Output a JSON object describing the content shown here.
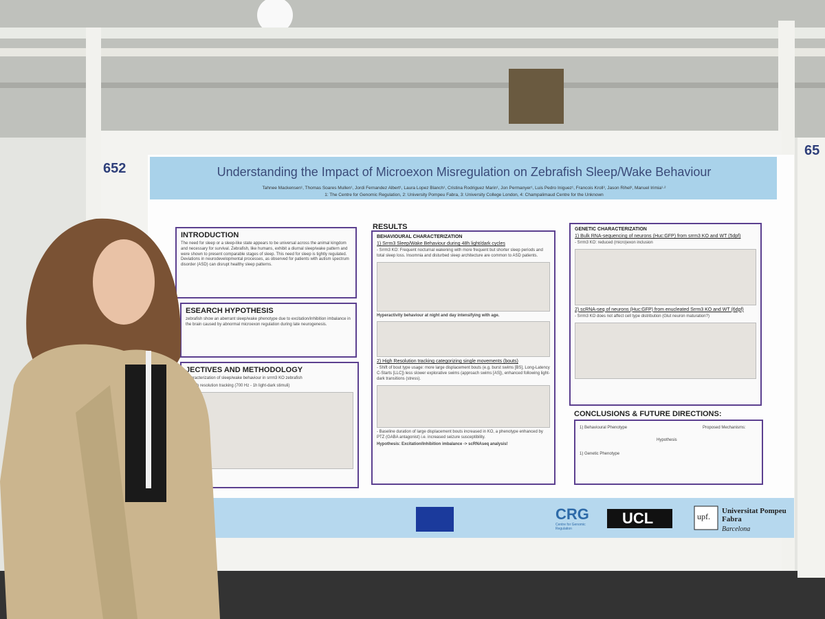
{
  "board_number": "652",
  "next_board_number": "65",
  "poster": {
    "title": "Understanding the Impact of Microexon Misregulation on Zebrafish Sleep/Wake Behaviour",
    "authors": "Tahnee Mackensen¹, Thomas Soares Mullen¹, Jordi Fernandez Albert¹, Laura Lopez Blanch¹, Cristina Rodriguez Marin¹, Jon Permanyer¹, Luis Pedro Iniguez¹, Francois Kroll³, Jason Rihel³, Manuel Irimia¹·²",
    "affiliations": "1: The Centre for Genomic Regulation, 2: University Pompeu Fabra, 3: University College London, 4: Champalimaud Centre for the Unknown",
    "introduction": {
      "heading": "INTRODUCTION",
      "text": "The need for sleep or a sleep-like state appears to be universal across the animal kingdom and necessary for survival. Zebrafish, like humans, exhibit a diurnal sleep/wake pattern and were shown to present comparable stages of sleep. This need for sleep is tightly regulated. Deviations in neurodevelopmental processes, as observed for patients with autism spectrum disorder (ASD) can disrupt healthy sleep patterns."
    },
    "hypothesis": {
      "heading": "ESEARCH HYPOTHESIS",
      "text": "zebrafish show an aberrant sleep/wake phenotype due to excitation/inhibition imbalance in the brain caused by abnormal microexon regulation during late neurogenesis."
    },
    "objectives": {
      "heading": "JECTIVES AND METHODOLOGY",
      "text": "Characterization of sleep/wake behaviour in srrm3 KO zebrafish",
      "item": "b) High resolution tracking (700 Hz - 1h light-dark stimuli)"
    },
    "results": {
      "heading": "RESULTS",
      "subheading": "BEHAVIOURAL CHARACTERIZATION",
      "part1": "1) Srrm3 Sleep/Wake Behaviour during 48h light/dark cycles",
      "part1_text": "- Srrm3 KO: Frequent nocturnal wakening with more frequent but shorter sleep periods and total sleep loss. Insomnia and disturbed sleep architecture are common to ASD patients.",
      "hyperactivity": "Hyperactivity behaviour at night and day intensifying with age.",
      "part2": "2) High Resolution tracking categorizing single movements (bouts)",
      "part2_text": "- Shift of bout type usage: more large displacement bouts (e.g. burst swims [BS], Long-Latency C-Starts [LLC]) less slower explorative swims (approach swims [AS]), enhanced following light-dark transitions (stress).",
      "baseline": "- Baseline duration of large displacement bouts increased in KO, a phenotype enhanced by PTZ (GABA antagonist) i.e. increased seizure susceptibility.",
      "conclusion": "Hypothesis: Excitation/Inhibition imbalance -> scRNAseq analysis!"
    },
    "genetic": {
      "heading": "GENETIC CHARACTERIZATION",
      "part1": "1) Bulk RNA-sequencing of neurons (Huc:GFP) from srrm3 KO and WT (5dpf)",
      "part1_text": "- Srrm3 KO: reduced (micro)exon inclusion",
      "part2": "2) scRNA-seq of neurons (Huc:GFP) from enucleated Srrm3 KO and WT (6dpf)",
      "part2_text": "- Srrm3 KO does not affect cell type distribution (Glut neuron maturation?)"
    },
    "conclusions": {
      "heading": "CONCLUSIONS & FUTURE DIRECTIONS:",
      "behavioural": "1) Behavioural Phenotype",
      "genetic": "1) Genetic Phenotype",
      "hypothesis": "Hypothesis",
      "mechanisms": "Proposed Mechanisms:"
    },
    "logos": {
      "crg": "CRG",
      "crg_sub": "Centre for Genomic Regulation",
      "ucl": "UCL",
      "upf": "upf.",
      "upf_name": "Universitat Pompeu Fabra",
      "upf_city": "Barcelona"
    }
  }
}
